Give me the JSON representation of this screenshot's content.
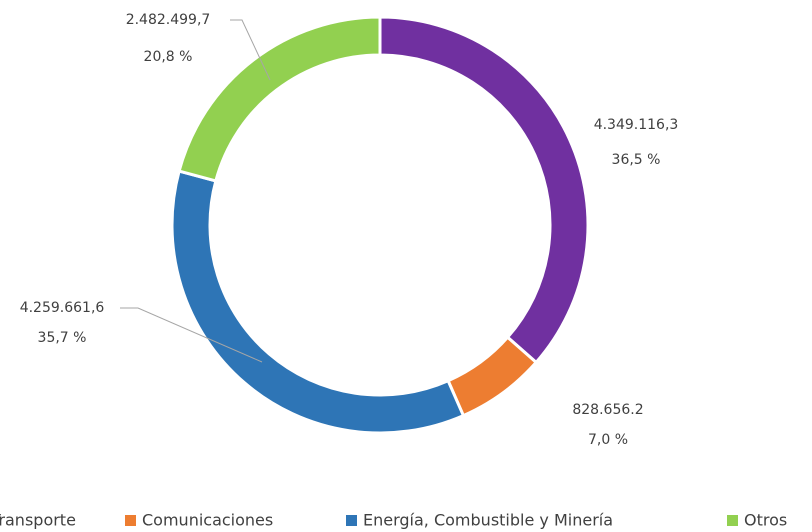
{
  "chart_data": {
    "type": "donut",
    "categories": [
      "Transporte",
      "Comunicaciones",
      "Energía, Combustible y Minería",
      "Otros"
    ],
    "colors": [
      "#7030a0",
      "#ed7d31",
      "#2e75b6",
      "#92d050"
    ],
    "values": [
      4349116.3,
      828656.2,
      4259661.6,
      2482499.7
    ],
    "value_labels": [
      "4.349.116,3",
      "828.656.2",
      "4.259.661,6",
      "2.482.499,7"
    ],
    "percentages": [
      36.5,
      7.0,
      35.7,
      20.8
    ],
    "percentage_labels": [
      "36,5 %",
      "7,0 %",
      "35,7 %",
      "20,8 %"
    ],
    "legend": "bottom"
  }
}
